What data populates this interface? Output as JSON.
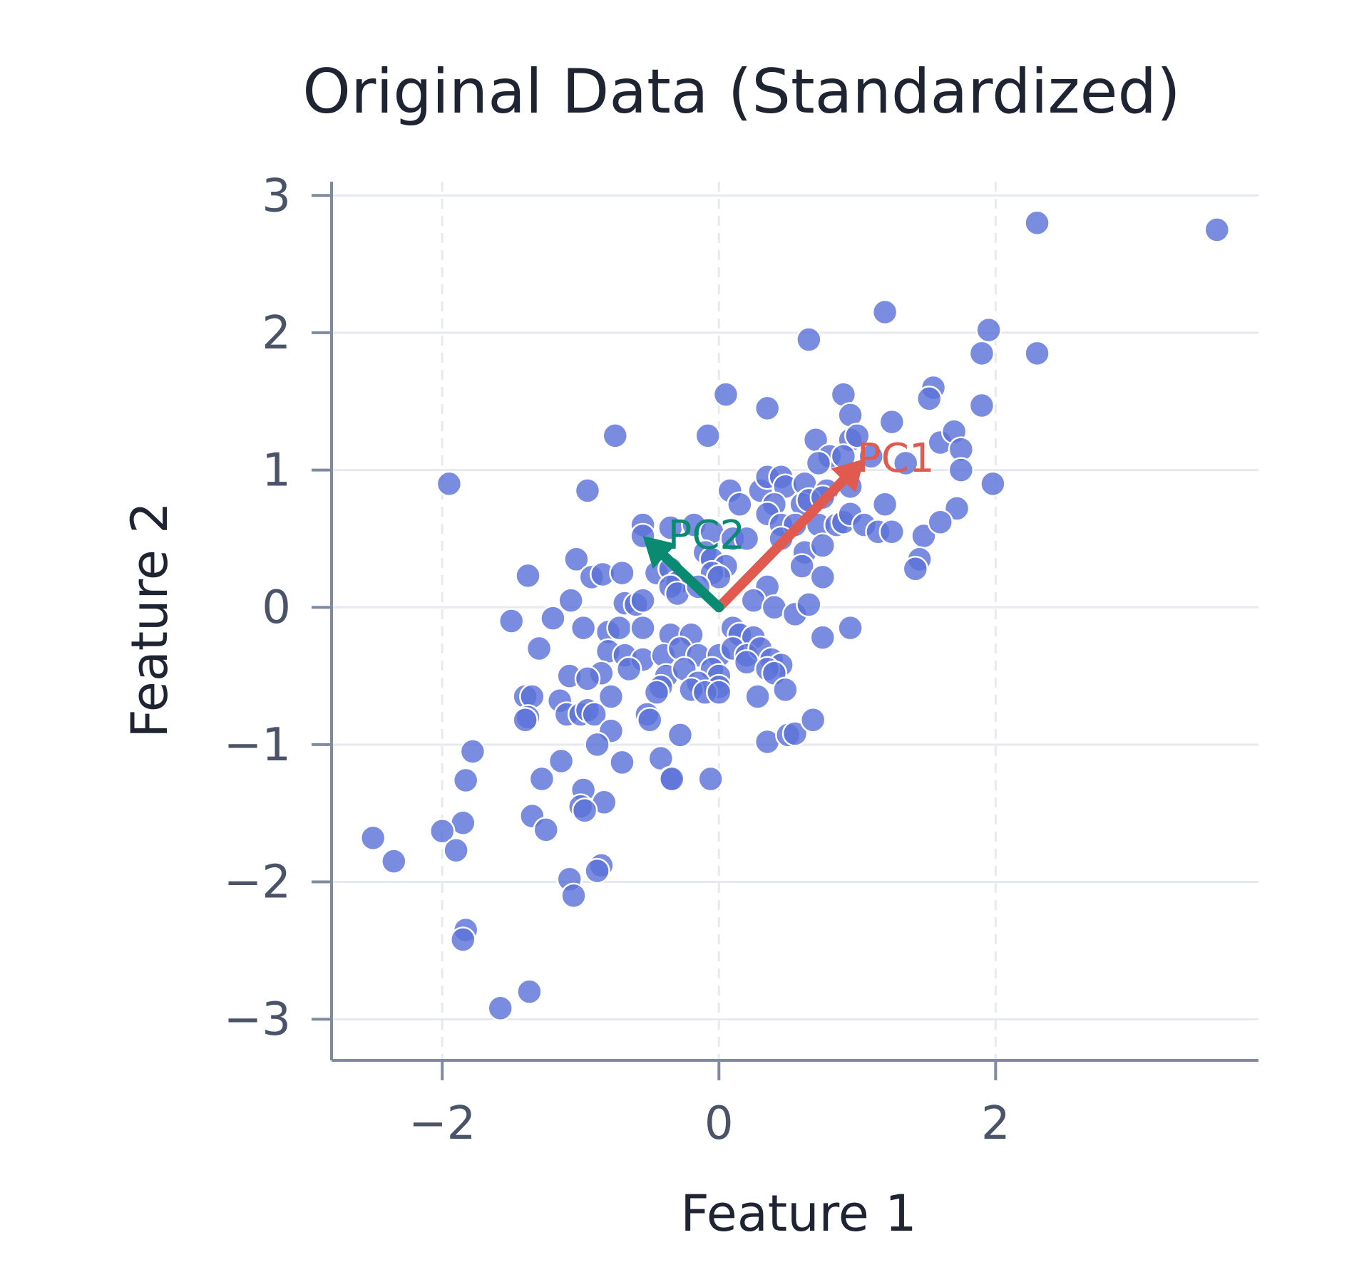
{
  "chart_data": {
    "type": "scatter",
    "title": "Original Data (Standardized)",
    "xlabel": "Feature 1",
    "ylabel": "Feature 2",
    "xlim": [
      -2.8,
      3.9
    ],
    "ylim": [
      -3.3,
      3.1
    ],
    "x_ticks": [
      -2,
      0,
      2
    ],
    "y_ticks": [
      -3,
      -2,
      -1,
      0,
      1,
      2,
      3
    ],
    "x_tick_labels": [
      "−2",
      "0",
      "2"
    ],
    "y_tick_labels": [
      "−3",
      "−2",
      "−1",
      "0",
      "1",
      "2",
      "3"
    ],
    "grid": true,
    "colors": {
      "points": "#5b73d8",
      "pc1": "#e05a4f",
      "pc2": "#0b8a72",
      "grid": "#e6e9f0",
      "axis": "#7f8aa0"
    },
    "vectors": [
      {
        "name": "PC1",
        "start": [
          0,
          0
        ],
        "end": [
          1.05,
          1.08
        ]
      },
      {
        "name": "PC2",
        "start": [
          0,
          0
        ],
        "end": [
          -0.55,
          0.52
        ]
      }
    ],
    "points": [
      [
        2.3,
        2.8
      ],
      [
        3.6,
        2.75
      ],
      [
        1.2,
        2.15
      ],
      [
        0.65,
        1.95
      ],
      [
        1.95,
        2.02
      ],
      [
        1.9,
        1.85
      ],
      [
        2.3,
        1.85
      ],
      [
        0.05,
        1.55
      ],
      [
        0.35,
        1.45
      ],
      [
        0.9,
        1.55
      ],
      [
        1.55,
        1.6
      ],
      [
        1.52,
        1.52
      ],
      [
        1.9,
        1.47
      ],
      [
        0.95,
        1.4
      ],
      [
        1.25,
        1.35
      ],
      [
        -0.75,
        1.25
      ],
      [
        -0.08,
        1.25
      ],
      [
        0.7,
        1.22
      ],
      [
        0.95,
        1.22
      ],
      [
        1.0,
        1.25
      ],
      [
        1.6,
        1.2
      ],
      [
        1.7,
        1.28
      ],
      [
        1.75,
        1.15
      ],
      [
        0.8,
        1.1
      ],
      [
        0.9,
        1.1
      ],
      [
        1.1,
        1.1
      ],
      [
        1.35,
        1.05
      ],
      [
        0.72,
        1.05
      ],
      [
        1.75,
        1.0
      ],
      [
        1.98,
        0.9
      ],
      [
        -1.95,
        0.9
      ],
      [
        -0.95,
        0.85
      ],
      [
        0.08,
        0.85
      ],
      [
        0.3,
        0.85
      ],
      [
        0.35,
        0.95
      ],
      [
        0.45,
        0.95
      ],
      [
        0.48,
        0.88
      ],
      [
        0.62,
        0.9
      ],
      [
        0.78,
        0.85
      ],
      [
        0.95,
        0.88
      ],
      [
        0.15,
        0.75
      ],
      [
        0.4,
        0.75
      ],
      [
        0.6,
        0.75
      ],
      [
        0.65,
        0.78
      ],
      [
        0.75,
        0.8
      ],
      [
        1.2,
        0.75
      ],
      [
        1.72,
        0.72
      ],
      [
        0.35,
        0.68
      ],
      [
        0.45,
        0.6
      ],
      [
        0.55,
        0.6
      ],
      [
        0.72,
        0.6
      ],
      [
        0.85,
        0.6
      ],
      [
        0.9,
        0.62
      ],
      [
        0.95,
        0.68
      ],
      [
        1.05,
        0.6
      ],
      [
        1.15,
        0.55
      ],
      [
        1.25,
        0.55
      ],
      [
        1.48,
        0.52
      ],
      [
        1.6,
        0.62
      ],
      [
        -0.55,
        0.6
      ],
      [
        -0.55,
        0.52
      ],
      [
        -0.35,
        0.58
      ],
      [
        -0.18,
        0.6
      ],
      [
        -0.05,
        0.55
      ],
      [
        0.1,
        0.5
      ],
      [
        0.2,
        0.5
      ],
      [
        0.45,
        0.5
      ],
      [
        0.62,
        0.4
      ],
      [
        0.75,
        0.45
      ],
      [
        -1.03,
        0.35
      ],
      [
        -0.1,
        0.4
      ],
      [
        -0.05,
        0.35
      ],
      [
        0.05,
        0.3
      ],
      [
        1.45,
        0.35
      ],
      [
        1.42,
        0.28
      ],
      [
        -1.38,
        0.23
      ],
      [
        -0.92,
        0.22
      ],
      [
        -0.84,
        0.24
      ],
      [
        -0.7,
        0.25
      ],
      [
        -0.45,
        0.25
      ],
      [
        -0.35,
        0.28
      ],
      [
        -0.3,
        0.18
      ],
      [
        -0.05,
        0.25
      ],
      [
        0.0,
        0.22
      ],
      [
        0.6,
        0.3
      ],
      [
        0.75,
        0.22
      ],
      [
        -1.07,
        0.05
      ],
      [
        -0.68,
        0.03
      ],
      [
        -0.6,
        0.02
      ],
      [
        -0.55,
        0.05
      ],
      [
        -0.35,
        0.15
      ],
      [
        -0.3,
        0.1
      ],
      [
        -0.15,
        0.15
      ],
      [
        0.35,
        0.15
      ],
      [
        0.25,
        0.05
      ],
      [
        0.4,
        0.0
      ],
      [
        0.55,
        -0.05
      ],
      [
        0.65,
        0.02
      ],
      [
        -1.5,
        -0.1
      ],
      [
        -1.2,
        -0.08
      ],
      [
        -0.98,
        -0.15
      ],
      [
        -0.8,
        -0.18
      ],
      [
        -0.72,
        -0.15
      ],
      [
        -0.55,
        -0.15
      ],
      [
        -0.35,
        -0.2
      ],
      [
        -0.2,
        -0.2
      ],
      [
        0.1,
        -0.15
      ],
      [
        0.15,
        -0.2
      ],
      [
        0.25,
        -0.22
      ],
      [
        0.75,
        -0.22
      ],
      [
        0.95,
        -0.15
      ],
      [
        -1.3,
        -0.3
      ],
      [
        -0.8,
        -0.32
      ],
      [
        -0.68,
        -0.35
      ],
      [
        -0.55,
        -0.38
      ],
      [
        -0.4,
        -0.35
      ],
      [
        -0.28,
        -0.3
      ],
      [
        -0.15,
        -0.35
      ],
      [
        0.0,
        -0.35
      ],
      [
        0.1,
        -0.3
      ],
      [
        0.2,
        -0.35
      ],
      [
        0.3,
        -0.3
      ],
      [
        0.38,
        -0.38
      ],
      [
        0.45,
        -0.42
      ],
      [
        -0.85,
        -0.48
      ],
      [
        -0.65,
        -0.45
      ],
      [
        -0.38,
        -0.5
      ],
      [
        -0.25,
        -0.45
      ],
      [
        -0.05,
        -0.45
      ],
      [
        0.0,
        -0.5
      ],
      [
        0.2,
        -0.4
      ],
      [
        0.35,
        -0.45
      ],
      [
        0.4,
        -0.48
      ],
      [
        -1.08,
        -0.5
      ],
      [
        -0.95,
        -0.52
      ],
      [
        -0.42,
        -0.58
      ],
      [
        -0.15,
        -0.55
      ],
      [
        0.0,
        -0.58
      ],
      [
        -1.4,
        -0.65
      ],
      [
        -1.35,
        -0.65
      ],
      [
        -1.15,
        -0.68
      ],
      [
        -0.78,
        -0.65
      ],
      [
        -0.45,
        -0.62
      ],
      [
        -0.2,
        -0.6
      ],
      [
        -0.1,
        -0.62
      ],
      [
        0.0,
        -0.62
      ],
      [
        0.28,
        -0.65
      ],
      [
        0.48,
        -0.6
      ],
      [
        -1.38,
        -0.8
      ],
      [
        -1.4,
        -0.82
      ],
      [
        -1.1,
        -0.78
      ],
      [
        -1.0,
        -0.78
      ],
      [
        -0.95,
        -0.75
      ],
      [
        -0.9,
        -0.78
      ],
      [
        -0.52,
        -0.78
      ],
      [
        -0.5,
        -0.82
      ],
      [
        -0.78,
        -0.9
      ],
      [
        -0.28,
        -0.93
      ],
      [
        0.35,
        -0.98
      ],
      [
        0.5,
        -0.93
      ],
      [
        0.55,
        -0.92
      ],
      [
        0.68,
        -0.82
      ],
      [
        -0.88,
        -1.0
      ],
      [
        -1.78,
        -1.05
      ],
      [
        -1.14,
        -1.12
      ],
      [
        -0.7,
        -1.13
      ],
      [
        -0.42,
        -1.1
      ],
      [
        -0.35,
        -1.25
      ],
      [
        -0.34,
        -1.25
      ],
      [
        -0.06,
        -1.25
      ],
      [
        -1.83,
        -1.26
      ],
      [
        -1.28,
        -1.25
      ],
      [
        -0.98,
        -1.33
      ],
      [
        -0.83,
        -1.42
      ],
      [
        -1.0,
        -1.45
      ],
      [
        -0.97,
        -1.48
      ],
      [
        -1.35,
        -1.52
      ],
      [
        -1.25,
        -1.62
      ],
      [
        -1.85,
        -1.57
      ],
      [
        -2.0,
        -1.63
      ],
      [
        -1.9,
        -1.77
      ],
      [
        -2.5,
        -1.68
      ],
      [
        -2.35,
        -1.85
      ],
      [
        -0.85,
        -1.88
      ],
      [
        -0.88,
        -1.92
      ],
      [
        -1.08,
        -1.98
      ],
      [
        -1.05,
        -2.1
      ],
      [
        -1.83,
        -2.35
      ],
      [
        -1.85,
        -2.42
      ],
      [
        -1.37,
        -2.8
      ],
      [
        -1.58,
        -2.92
      ]
    ]
  }
}
